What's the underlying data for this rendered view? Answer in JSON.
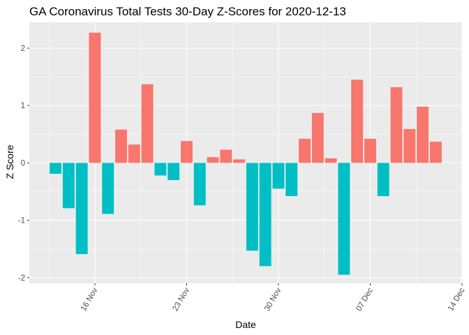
{
  "chart_data": {
    "type": "bar",
    "title": "GA Coronavirus Total Tests 30-Day Z-Scores for 2020-12-13",
    "xlabel": "Date",
    "ylabel": "Z Score",
    "x_type": "date",
    "x_range": [
      "2020-11-11",
      "2020-12-14"
    ],
    "ylim": [
      -2.1,
      2.45
    ],
    "grid": true,
    "legend": "none",
    "y_ticks": [
      {
        "value": -2,
        "label": "-2"
      },
      {
        "value": -1,
        "label": "-1"
      },
      {
        "value": 0,
        "label": "0"
      },
      {
        "value": 1,
        "label": "1"
      },
      {
        "value": 2,
        "label": "2"
      }
    ],
    "x_ticks": [
      {
        "date": "2020-11-16",
        "label": "16 Nov"
      },
      {
        "date": "2020-11-23",
        "label": "23 Nov"
      },
      {
        "date": "2020-11-30",
        "label": "30 Nov"
      },
      {
        "date": "2020-12-07",
        "label": "07 Dec"
      },
      {
        "date": "2020-12-14",
        "label": "14 Dec"
      }
    ],
    "colors": {
      "positive": "#F8766D",
      "negative": "#00BFC4",
      "panel": "#EBEBEB",
      "grid": "#FFFFFF"
    },
    "x": [
      "2020-11-13",
      "2020-11-14",
      "2020-11-15",
      "2020-11-16",
      "2020-11-17",
      "2020-11-18",
      "2020-11-19",
      "2020-11-20",
      "2020-11-21",
      "2020-11-22",
      "2020-11-23",
      "2020-11-24",
      "2020-11-25",
      "2020-11-26",
      "2020-11-27",
      "2020-11-28",
      "2020-11-29",
      "2020-11-30",
      "2020-12-01",
      "2020-12-02",
      "2020-12-03",
      "2020-12-04",
      "2020-12-05",
      "2020-12-06",
      "2020-12-07",
      "2020-12-08",
      "2020-12-09",
      "2020-12-10",
      "2020-12-11",
      "2020-12-12",
      "2020-12-13"
    ],
    "values": [
      -0.19,
      -0.79,
      -1.59,
      2.27,
      -0.89,
      0.58,
      0.32,
      1.37,
      -0.22,
      -0.3,
      0.38,
      -0.74,
      0.1,
      0.23,
      0.06,
      -1.53,
      -1.8,
      -0.45,
      -0.58,
      0.42,
      0.87,
      0.08,
      -1.95,
      1.45,
      0.42,
      -0.58,
      1.32,
      0.59,
      0.98,
      0.37,
      0.0
    ]
  }
}
